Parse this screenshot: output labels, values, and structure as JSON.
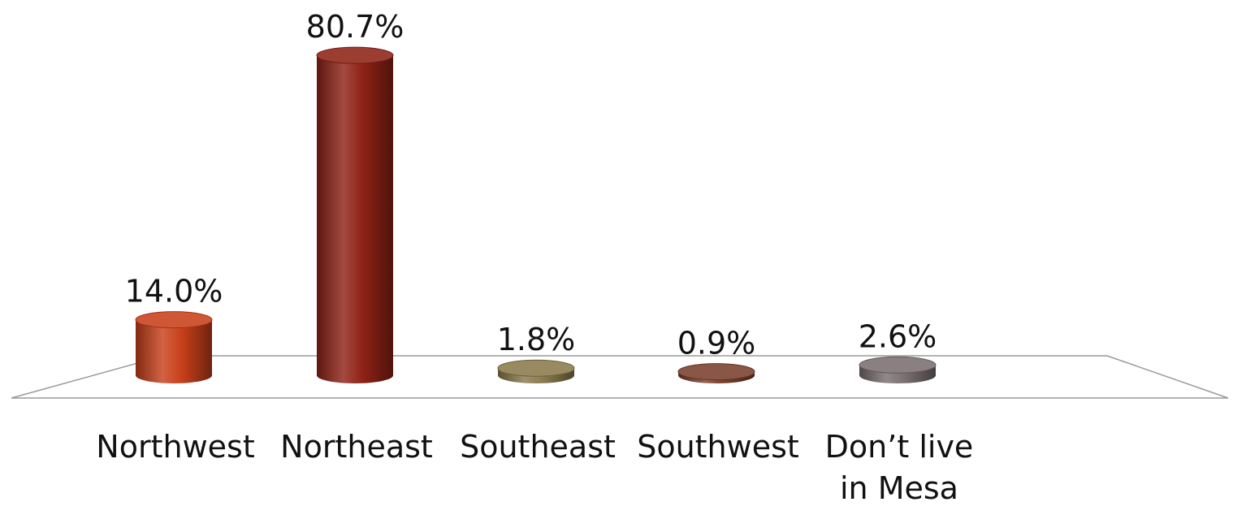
{
  "chart_data": {
    "type": "bar",
    "title": "",
    "xlabel": "",
    "ylabel": "",
    "categories": [
      "Northwest",
      "Northeast",
      "Southeast",
      "Southwest",
      "Don’t live in Mesa"
    ],
    "category_label_lines": [
      [
        "Northwest"
      ],
      [
        "Northeast"
      ],
      [
        "Southeast"
      ],
      [
        "Southwest"
      ],
      [
        "Don’t live",
        "in Mesa"
      ]
    ],
    "values": [
      14.0,
      80.7,
      1.8,
      0.9,
      2.6
    ],
    "value_labels": [
      "14.0%",
      "80.7%",
      "1.8%",
      "0.9%",
      "2.6%"
    ],
    "unit": "%",
    "ylim": [
      0,
      85
    ],
    "grid": false,
    "legend": "none",
    "style": "3d-cylinder",
    "colors": [
      "#c8401a",
      "#8f2216",
      "#8a7a4c",
      "#7a3f2c",
      "#7a6e70"
    ]
  }
}
